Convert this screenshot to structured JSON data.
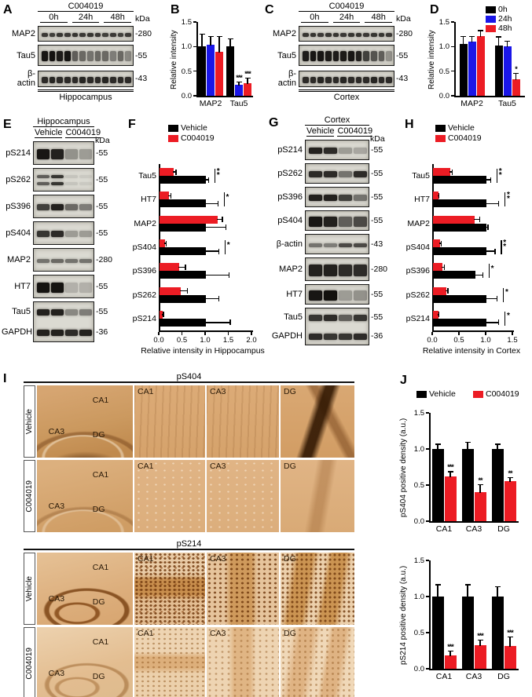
{
  "colors": {
    "black": "#000000",
    "blue": "#1a16e8",
    "red": "#ec1c24",
    "ihc_tan": "#d8a876",
    "ihc_dark": "#6e3f14"
  },
  "panels": {
    "A": {
      "label": "A",
      "treatment": "C004019",
      "timepoints": [
        "0h",
        "24h",
        "48h"
      ],
      "kda_unit": "kDa",
      "tissue": "Hippocampus",
      "rows": [
        {
          "name": "MAP2",
          "kda": "-280",
          "style": "thin",
          "lanes": [
            0.78,
            0.75,
            0.8,
            0.78,
            0.8,
            0.78,
            0.8,
            0.78,
            0.75,
            0.78,
            0.75,
            0.78
          ]
        },
        {
          "name": "Tau5",
          "kda": "-55",
          "style": "thick",
          "lanes": [
            0.95,
            0.97,
            0.92,
            0.96,
            0.6,
            0.55,
            0.5,
            0.55,
            0.55,
            0.45,
            0.55,
            0.4
          ]
        },
        {
          "name": "β-actin",
          "kda": "-43",
          "style": "med",
          "lanes": [
            0.85,
            0.88,
            0.85,
            0.85,
            0.85,
            0.88,
            0.85,
            0.85,
            0.88,
            0.85,
            0.85,
            0.85
          ]
        }
      ]
    },
    "B": {
      "label": "B"
    },
    "C": {
      "label": "C",
      "treatment": "C004019",
      "timepoints": [
        "0h",
        "24h",
        "48h"
      ],
      "kda_unit": "kDa",
      "tissue": "Cortex",
      "rows": [
        {
          "name": "MAP2",
          "kda": "-280",
          "style": "thin",
          "lanes": [
            0.8,
            0.8,
            0.78,
            0.8,
            0.8,
            0.78,
            0.8,
            0.8,
            0.78,
            0.8,
            0.8,
            0.78
          ]
        },
        {
          "name": "Tau5",
          "kda": "-55",
          "style": "thick",
          "lanes": [
            0.92,
            0.95,
            0.95,
            0.93,
            0.92,
            0.93,
            0.95,
            0.9,
            0.75,
            0.65,
            0.6,
            0.35
          ]
        },
        {
          "name": "β-actin",
          "kda": "-43",
          "style": "med",
          "lanes": [
            0.85,
            0.85,
            0.88,
            0.85,
            0.85,
            0.88,
            0.85,
            0.85,
            0.85,
            0.88,
            0.85,
            0.85
          ]
        }
      ]
    },
    "D": {
      "label": "D"
    },
    "E": {
      "label": "E",
      "tissue": "Hippocampus",
      "conditions": [
        "Vehicle",
        "C004019"
      ],
      "kda_unit": "kDa",
      "rows": [
        {
          "name": "pS214",
          "kda": "-55",
          "style": "thick",
          "lanes": [
            0.95,
            0.9,
            0.35,
            0.3
          ]
        },
        {
          "name": "pS262",
          "kda": "-55",
          "style": "doublet",
          "lanes": [
            0.6,
            0.8,
            0.1,
            0.08
          ]
        },
        {
          "name": "pS396",
          "kda": "-55",
          "style": "med",
          "lanes": [
            0.75,
            0.9,
            0.55,
            0.45
          ]
        },
        {
          "name": "pS404",
          "kda": "-55",
          "style": "med",
          "lanes": [
            0.8,
            0.85,
            0.3,
            0.3
          ]
        },
        {
          "name": "MAP2",
          "kda": "-280",
          "style": "thin",
          "lanes": [
            0.5,
            0.55,
            0.5,
            0.5
          ]
        },
        {
          "name": "HT7",
          "kda": "-55",
          "style": "thick",
          "lanes": [
            0.97,
            0.97,
            0.2,
            0.2
          ]
        }
      ],
      "double_row": {
        "names": [
          "Tau5",
          "GAPDH"
        ],
        "kdas": [
          "-55",
          "-36"
        ],
        "lanes": [
          [
            0.9,
            0.9,
            0.4,
            0.45
          ],
          [
            0.9,
            0.9,
            0.85,
            0.9
          ]
        ]
      }
    },
    "F": {
      "label": "F"
    },
    "G": {
      "label": "G",
      "tissue": "Cortex",
      "conditions": [
        "Vehicle",
        "C004019"
      ],
      "kda_unit": "kDa",
      "rows": [
        {
          "name": "pS214",
          "kda": "-55",
          "style": "med",
          "lanes": [
            0.9,
            0.85,
            0.3,
            0.25
          ]
        },
        {
          "name": "pS262",
          "kda": "-55",
          "style": "med",
          "lanes": [
            0.85,
            0.85,
            0.5,
            0.85
          ]
        },
        {
          "name": "pS396",
          "kda": "-55",
          "style": "med",
          "lanes": [
            0.9,
            0.9,
            0.75,
            0.5
          ]
        },
        {
          "name": "pS404",
          "kda": "-55",
          "style": "thick",
          "lanes": [
            0.95,
            0.9,
            0.6,
            0.7
          ]
        },
        {
          "name": "β-actin",
          "kda": "-43",
          "style": "thin",
          "lanes": [
            0.5,
            0.45,
            0.7,
            0.7
          ]
        },
        {
          "name": "MAP2",
          "kda": "-280",
          "style": "tall",
          "lanes": [
            0.9,
            0.9,
            0.85,
            0.85
          ]
        },
        {
          "name": "HT7",
          "kda": "-55",
          "style": "thick",
          "lanes": [
            0.95,
            0.98,
            0.3,
            0.35
          ]
        }
      ],
      "double_row": {
        "names": [
          "Tau5",
          "GAPDH"
        ],
        "kdas": [
          "-55",
          "-36"
        ],
        "lanes": [
          [
            0.8,
            0.85,
            0.6,
            0.8
          ],
          [
            0.85,
            0.8,
            0.8,
            0.85
          ]
        ]
      }
    },
    "H": {
      "label": "H"
    },
    "I": {
      "label": "I",
      "groups": [
        {
          "header": "pS404",
          "rows": [
            {
              "row_label": "Vehicle",
              "ov_tx": "tx-ov-p4v",
              "overview_labels": [
                "CA1",
                "CA3",
                "DG"
              ],
              "zooms": [
                {
                  "label": "CA1",
                  "tx": "tx-p4v-z"
                },
                {
                  "label": "CA3",
                  "tx": "tx-p4v-z"
                },
                {
                  "label": "DG",
                  "tx": "tx-p4v-dg"
                }
              ]
            },
            {
              "row_label": "C004019",
              "ov_tx": "tx-ov-p4t",
              "overview_labels": [
                "CA1",
                "CA3",
                "DG"
              ],
              "zooms": [
                {
                  "label": "CA1",
                  "tx": "tx-p4t-z"
                },
                {
                  "label": "CA3",
                  "tx": "tx-p4t-z"
                },
                {
                  "label": "DG",
                  "tx": "tx-p4t-dg"
                }
              ]
            }
          ]
        },
        {
          "header": "pS214",
          "rows": [
            {
              "row_label": "Vehicle",
              "ov_tx": "tx-ov-p2v",
              "overview_labels": [
                "CA1",
                "CA3",
                "DG"
              ],
              "zooms": [
                {
                  "label": "CA1",
                  "tx": "tx-p2v-ca1"
                },
                {
                  "label": "CA3",
                  "tx": "tx-p2v-ca3"
                },
                {
                  "label": "DG",
                  "tx": "tx-p2v-dg"
                }
              ]
            },
            {
              "row_label": "C004019",
              "ov_tx": "tx-ov-p2t",
              "overview_labels": [
                "CA1",
                "CA3",
                "DG"
              ],
              "zooms": [
                {
                  "label": "CA1",
                  "tx": "tx-p2t-ca1"
                },
                {
                  "label": "CA3",
                  "tx": "tx-p2t-ca3"
                },
                {
                  "label": "DG",
                  "tx": "tx-p2t-dg"
                }
              ]
            }
          ]
        }
      ]
    },
    "J": {
      "label": "J",
      "legend": [
        "Vehicle",
        "C004019"
      ]
    }
  },
  "chart_data": [
    {
      "id": "B",
      "type": "bar",
      "orientation": "vertical",
      "title": "",
      "ylabel": "Relative intensity",
      "ylim": [
        0,
        1.5
      ],
      "yticks": [
        "0.0",
        "0.5",
        "1.0",
        "1.5"
      ],
      "categories": [
        "MAP2",
        "Tau5"
      ],
      "series": [
        {
          "name": "0h",
          "color": "#000000",
          "values": [
            1.0,
            1.0
          ],
          "errors": [
            0.25,
            0.15
          ],
          "sig": [
            "",
            ""
          ]
        },
        {
          "name": "24h",
          "color": "#1a16e8",
          "values": [
            1.03,
            0.22
          ],
          "errors": [
            0.17,
            0.05
          ],
          "sig": [
            "",
            "***"
          ]
        },
        {
          "name": "48h",
          "color": "#ec1c24",
          "values": [
            0.9,
            0.25
          ],
          "errors": [
            0.3,
            0.1
          ],
          "sig": [
            "",
            "***"
          ]
        }
      ],
      "legend_position": "none"
    },
    {
      "id": "D",
      "type": "bar",
      "orientation": "vertical",
      "title": "",
      "ylabel": "Relative intensity",
      "ylim": [
        0,
        1.5
      ],
      "yticks": [
        "0.0",
        "0.5",
        "1.0",
        "1.5"
      ],
      "categories": [
        "MAP2",
        "Tau5"
      ],
      "series": [
        {
          "name": "0h",
          "color": "#000000",
          "values": [
            1.05,
            1.02
          ],
          "errors": [
            0.15,
            0.17
          ],
          "sig": [
            "",
            ""
          ]
        },
        {
          "name": "24h",
          "color": "#1a16e8",
          "values": [
            1.1,
            1.0
          ],
          "errors": [
            0.1,
            0.1
          ],
          "sig": [
            "",
            ""
          ]
        },
        {
          "name": "48h",
          "color": "#ec1c24",
          "values": [
            1.22,
            0.33
          ],
          "errors": [
            0.1,
            0.12
          ],
          "sig": [
            "",
            "*"
          ]
        }
      ],
      "legend_position": "top-right"
    },
    {
      "id": "F",
      "type": "bar",
      "orientation": "horizontal",
      "title": "",
      "xlabel": "Relative intensity in Hippocampus",
      "xlim": [
        0,
        2.0
      ],
      "xticks": [
        "0.0",
        "0.5",
        "1.0",
        "1.5",
        "2.0"
      ],
      "categories": [
        "Tau5",
        "HT7",
        "MAP2",
        "pS404",
        "pS396",
        "pS262",
        "pS214"
      ],
      "series": [
        {
          "name": "Vehicle",
          "color": "#000000",
          "values": [
            1.0,
            1.0,
            1.0,
            1.0,
            1.0,
            1.0,
            1.0
          ],
          "errors": [
            0.08,
            0.28,
            0.45,
            0.3,
            0.52,
            0.3,
            0.55
          ]
        },
        {
          "name": "C004019",
          "color": "#ec1c24",
          "values": [
            0.3,
            0.2,
            1.25,
            0.12,
            0.42,
            0.45,
            0.07
          ],
          "errors": [
            0.08,
            0.07,
            0.13,
            0.05,
            0.16,
            0.18,
            0.04
          ]
        }
      ],
      "sig": [
        "**",
        "*",
        "",
        "*",
        "",
        "",
        ""
      ],
      "legend_position": "top"
    },
    {
      "id": "H",
      "type": "bar",
      "orientation": "horizontal",
      "title": "",
      "xlabel": "Relative intensity in Cortex",
      "xlim": [
        0,
        1.5
      ],
      "xticks": [
        "0.0",
        "0.5",
        "1.0",
        "1.5"
      ],
      "categories": [
        "Tau5",
        "HT7",
        "MAP2",
        "pS404",
        "pS396",
        "pS262",
        "pS214"
      ],
      "series": [
        {
          "name": "Vehicle",
          "color": "#000000",
          "values": [
            1.0,
            1.0,
            1.0,
            1.0,
            0.8,
            1.0,
            1.0
          ],
          "errors": [
            0.1,
            0.25,
            0.05,
            0.18,
            0.15,
            0.22,
            0.25
          ]
        },
        {
          "name": "C004019",
          "color": "#ec1c24",
          "values": [
            0.33,
            0.1,
            0.78,
            0.13,
            0.18,
            0.25,
            0.1
          ],
          "errors": [
            0.05,
            0.03,
            0.12,
            0.04,
            0.05,
            0.05,
            0.03
          ]
        }
      ],
      "sig": [
        "**",
        "**",
        "",
        "**",
        "*",
        "*",
        "*"
      ],
      "legend_position": "top"
    },
    {
      "id": "J1",
      "type": "bar",
      "orientation": "vertical",
      "title": "",
      "ylabel": "pS404 positive density (a.u.)",
      "ylim": [
        0,
        1.5
      ],
      "yticks": [
        "0.0",
        "0.5",
        "1.0",
        "1.5"
      ],
      "categories": [
        "CA1",
        "CA3",
        "DG"
      ],
      "series": [
        {
          "name": "Vehicle",
          "color": "#000000",
          "values": [
            1.0,
            1.0,
            1.0
          ],
          "errors": [
            0.06,
            0.09,
            0.06
          ],
          "sig": [
            "",
            "",
            ""
          ]
        },
        {
          "name": "C004019",
          "color": "#ec1c24",
          "values": [
            0.62,
            0.4,
            0.55
          ],
          "errors": [
            0.06,
            0.1,
            0.05
          ],
          "sig": [
            "***",
            "**",
            "**"
          ]
        }
      ],
      "legend_position": "shared-top"
    },
    {
      "id": "J2",
      "type": "bar",
      "orientation": "vertical",
      "title": "",
      "ylabel": "pS214 positive density (a.u.)",
      "ylim": [
        0,
        1.5
      ],
      "yticks": [
        "0.0",
        "0.5",
        "1.0",
        "1.5"
      ],
      "categories": [
        "CA1",
        "CA3",
        "DG"
      ],
      "series": [
        {
          "name": "Vehicle",
          "color": "#000000",
          "values": [
            1.0,
            1.0,
            1.0
          ],
          "errors": [
            0.16,
            0.16,
            0.13
          ],
          "sig": [
            "",
            "",
            ""
          ]
        },
        {
          "name": "C004019",
          "color": "#ec1c24",
          "values": [
            0.19,
            0.33,
            0.31
          ],
          "errors": [
            0.05,
            0.06,
            0.13
          ],
          "sig": [
            "***",
            "***",
            "***"
          ]
        }
      ],
      "legend_position": "shared-top"
    }
  ]
}
